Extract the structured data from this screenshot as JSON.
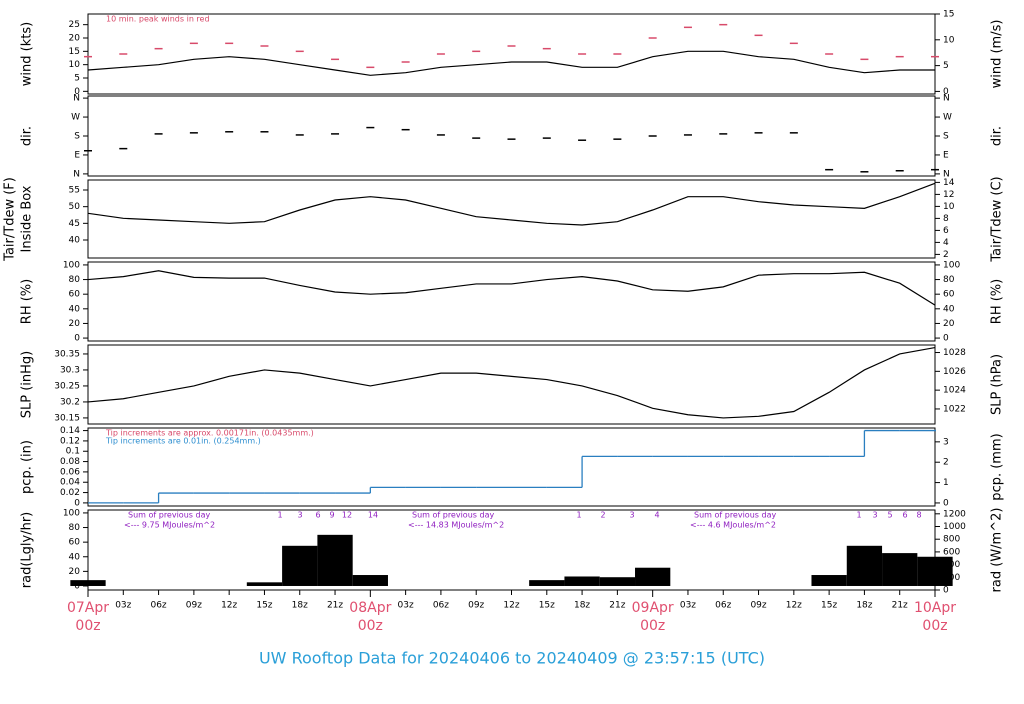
{
  "title": "UW Rooftop Data for 20240406  to  20240409 @ 23:57:15  (UTC)",
  "time_axis": {
    "xlim": [
      0,
      72
    ],
    "x": [
      0,
      3,
      6,
      9,
      12,
      15,
      18,
      21,
      24,
      27,
      30,
      33,
      36,
      39,
      42,
      45,
      48,
      51,
      54,
      57,
      60,
      63,
      66,
      69,
      72
    ],
    "xticks": [
      {
        "value": 3,
        "label": "03z"
      },
      {
        "value": 6,
        "label": "06z"
      },
      {
        "value": 9,
        "label": "09z"
      },
      {
        "value": 12,
        "label": "12z"
      },
      {
        "value": 15,
        "label": "15z"
      },
      {
        "value": 18,
        "label": "18z"
      },
      {
        "value": 21,
        "label": "21z"
      },
      {
        "value": 27,
        "label": "03z"
      },
      {
        "value": 30,
        "label": "06z"
      },
      {
        "value": 33,
        "label": "09z"
      },
      {
        "value": 36,
        "label": "12z"
      },
      {
        "value": 39,
        "label": "15z"
      },
      {
        "value": 42,
        "label": "18z"
      },
      {
        "value": 45,
        "label": "21z"
      },
      {
        "value": 51,
        "label": "03z"
      },
      {
        "value": 54,
        "label": "06z"
      },
      {
        "value": 57,
        "label": "09z"
      },
      {
        "value": 60,
        "label": "12z"
      },
      {
        "value": 63,
        "label": "15z"
      },
      {
        "value": 66,
        "label": "18z"
      },
      {
        "value": 69,
        "label": "21z"
      }
    ],
    "date_ticks": [
      {
        "value": 0,
        "label": "07Apr",
        "sub": "00z"
      },
      {
        "value": 24,
        "label": "08Apr",
        "sub": "00z"
      },
      {
        "value": 48,
        "label": "09Apr",
        "sub": "00z"
      },
      {
        "value": 72,
        "label": "10Apr",
        "sub": "00z"
      }
    ]
  },
  "chart_data": [
    {
      "type": "line",
      "ylabel": "wind (kts)",
      "y2label": "wind (m/s)",
      "ylim": [
        -1,
        29
      ],
      "yticks": [
        0,
        5,
        10,
        15,
        20,
        25
      ],
      "y2lim": [
        -0.5,
        15
      ],
      "y2ticks": [
        0,
        5,
        10,
        15
      ],
      "annotations": [
        {
          "text": "10 min. peak winds in red",
          "color": "#d84a6a"
        }
      ],
      "series": [
        {
          "name": "wind",
          "color": "#000000",
          "style": "line",
          "values": [
            8,
            9,
            10,
            12,
            13,
            12,
            10,
            8,
            6,
            7,
            9,
            10,
            11,
            11,
            9,
            9,
            13,
            15,
            15,
            13,
            12,
            9,
            7,
            8,
            8
          ]
        },
        {
          "name": "peak",
          "color": "#d84a6a",
          "style": "dash",
          "values": [
            13,
            14,
            16,
            18,
            18,
            17,
            15,
            12,
            9,
            11,
            14,
            15,
            17,
            16,
            14,
            14,
            20,
            24,
            25,
            21,
            18,
            14,
            12,
            13,
            13
          ]
        }
      ]
    },
    {
      "type": "scatter",
      "ylabel": "dir.",
      "y2label": "dir.",
      "ylim": [
        -10,
        370
      ],
      "yticks": [
        {
          "value": 0,
          "label": "N"
        },
        {
          "value": 90,
          "label": "E"
        },
        {
          "value": 180,
          "label": "S"
        },
        {
          "value": 270,
          "label": "W"
        },
        {
          "value": 360,
          "label": "N"
        }
      ],
      "y2lim": [
        -10,
        370
      ],
      "y2ticks": [
        {
          "value": 0,
          "label": "N"
        },
        {
          "value": 90,
          "label": "E"
        },
        {
          "value": 180,
          "label": "S"
        },
        {
          "value": 270,
          "label": "W"
        },
        {
          "value": 360,
          "label": "N"
        }
      ],
      "series": [
        {
          "name": "direction",
          "color": "#000000",
          "style": "dash",
          "values": [
            110,
            120,
            190,
            195,
            200,
            200,
            185,
            190,
            220,
            210,
            185,
            170,
            165,
            170,
            160,
            165,
            180,
            185,
            190,
            195,
            195,
            20,
            10,
            15,
            20
          ]
        }
      ]
    },
    {
      "type": "line",
      "ylabel": "Tair/Tdew (F)",
      "ylabel_sub": "Inside Box",
      "y2label": "Tair/Tdew (C)",
      "ylim": [
        34.6,
        58
      ],
      "yticks": [
        40,
        45,
        50,
        55
      ],
      "y2lim": [
        1.4,
        14.4
      ],
      "y2ticks": [
        2,
        4,
        6,
        8,
        10,
        12,
        14
      ],
      "series": [
        {
          "name": "Tair",
          "color": "#000000",
          "style": "line",
          "values": [
            48,
            46.5,
            46,
            45.5,
            45,
            45.5,
            49,
            52,
            53,
            52,
            49.5,
            47,
            46,
            45,
            44.5,
            45.5,
            49,
            53,
            53,
            51.5,
            50.5,
            50,
            49.5,
            53,
            57
          ]
        }
      ]
    },
    {
      "type": "line",
      "ylabel": "RH (%)",
      "y2label": "RH (%)",
      "ylim": [
        -4,
        104
      ],
      "yticks": [
        0,
        20,
        40,
        60,
        80,
        100
      ],
      "y2lim": [
        -4,
        104
      ],
      "y2ticks": [
        0,
        20,
        40,
        60,
        80,
        100
      ],
      "series": [
        {
          "name": "RH",
          "color": "#000000",
          "style": "line",
          "values": [
            80,
            84,
            92,
            83,
            82,
            82,
            72,
            63,
            60,
            62,
            68,
            74,
            74,
            80,
            84,
            78,
            66,
            64,
            70,
            86,
            88,
            88,
            90,
            75,
            45
          ]
        }
      ]
    },
    {
      "type": "line",
      "ylabel": "SLP (inHg)",
      "y2label": "SLP (hPa)",
      "ylim": [
        30.131,
        30.378
      ],
      "yticks": [
        30.15,
        30.2,
        30.25,
        30.3,
        30.35
      ],
      "y2lim": [
        1020.4,
        1028.8
      ],
      "y2ticks": [
        1022,
        1024,
        1026,
        1028
      ],
      "series": [
        {
          "name": "SLP",
          "color": "#000000",
          "style": "line",
          "values": [
            30.2,
            30.21,
            30.23,
            30.25,
            30.28,
            30.3,
            30.29,
            30.27,
            30.25,
            30.27,
            30.29,
            30.29,
            30.28,
            30.27,
            30.25,
            30.22,
            30.18,
            30.16,
            30.15,
            30.155,
            30.17,
            30.23,
            30.3,
            30.35,
            30.37
          ]
        }
      ]
    },
    {
      "type": "step",
      "ylabel": "pcp. (in)",
      "y2label": "pcp. (mm)",
      "ylim": [
        -0.006,
        0.145
      ],
      "yticks": [
        0,
        0.02,
        0.04,
        0.06,
        0.08,
        0.1,
        0.12,
        0.14
      ],
      "y2lim": [
        -0.15,
        3.68
      ],
      "y2ticks": [
        0,
        1,
        2,
        3
      ],
      "annotations": [
        {
          "text": "Tip increments are approx. 0.00171in. (0.0435mm.)",
          "color": "#d84a6a"
        },
        {
          "text": "Tip increments are 0.01in. (0.254mm.)",
          "color": "#2f8fd0"
        }
      ],
      "series": [
        {
          "name": "pcp",
          "color": "#2a7fc0",
          "style": "line",
          "values": [
            0,
            0,
            0.019,
            0.019,
            0.019,
            0.019,
            0.019,
            0.019,
            0.03,
            0.03,
            0.03,
            0.03,
            0.03,
            0.03,
            0.09,
            0.09,
            0.09,
            0.09,
            0.09,
            0.09,
            0.09,
            0.09,
            0.14,
            0.14,
            0.14
          ]
        }
      ]
    },
    {
      "type": "area",
      "ylabel": "rad(Lgly/hr)",
      "y2label": "rad (W/m^2)",
      "ylim": [
        -5.5,
        104
      ],
      "yticks": [
        0,
        20,
        40,
        60,
        80,
        100
      ],
      "y2lim": [
        0,
        1260
      ],
      "y2ticks": [
        0,
        200,
        400,
        600,
        800,
        1000,
        1200
      ],
      "notes": [
        {
          "head": "Sum of previous day",
          "text": "<--- 9.75 MJoules/m^2"
        },
        {
          "head": "Sum of previous day",
          "text": "<--- 14.83 MJoules/m^2"
        },
        {
          "head": "Sum of previous day",
          "text": "<--- 4.6 MJoules/m^2"
        }
      ],
      "sun_marks": [
        [
          "1",
          "3",
          "6",
          "9",
          "12",
          "14"
        ],
        [
          "1",
          "2",
          "3",
          "4"
        ],
        [
          "1",
          "3",
          "5",
          "6",
          "8"
        ]
      ],
      "series": [
        {
          "name": "rad",
          "color": "#000000",
          "style": "bar",
          "values": [
            8,
            0,
            0,
            0,
            0,
            5,
            55,
            70,
            15,
            0,
            0,
            0,
            0,
            8,
            13,
            12,
            25,
            0,
            0,
            0,
            0,
            15,
            55,
            45,
            40
          ]
        }
      ]
    }
  ]
}
